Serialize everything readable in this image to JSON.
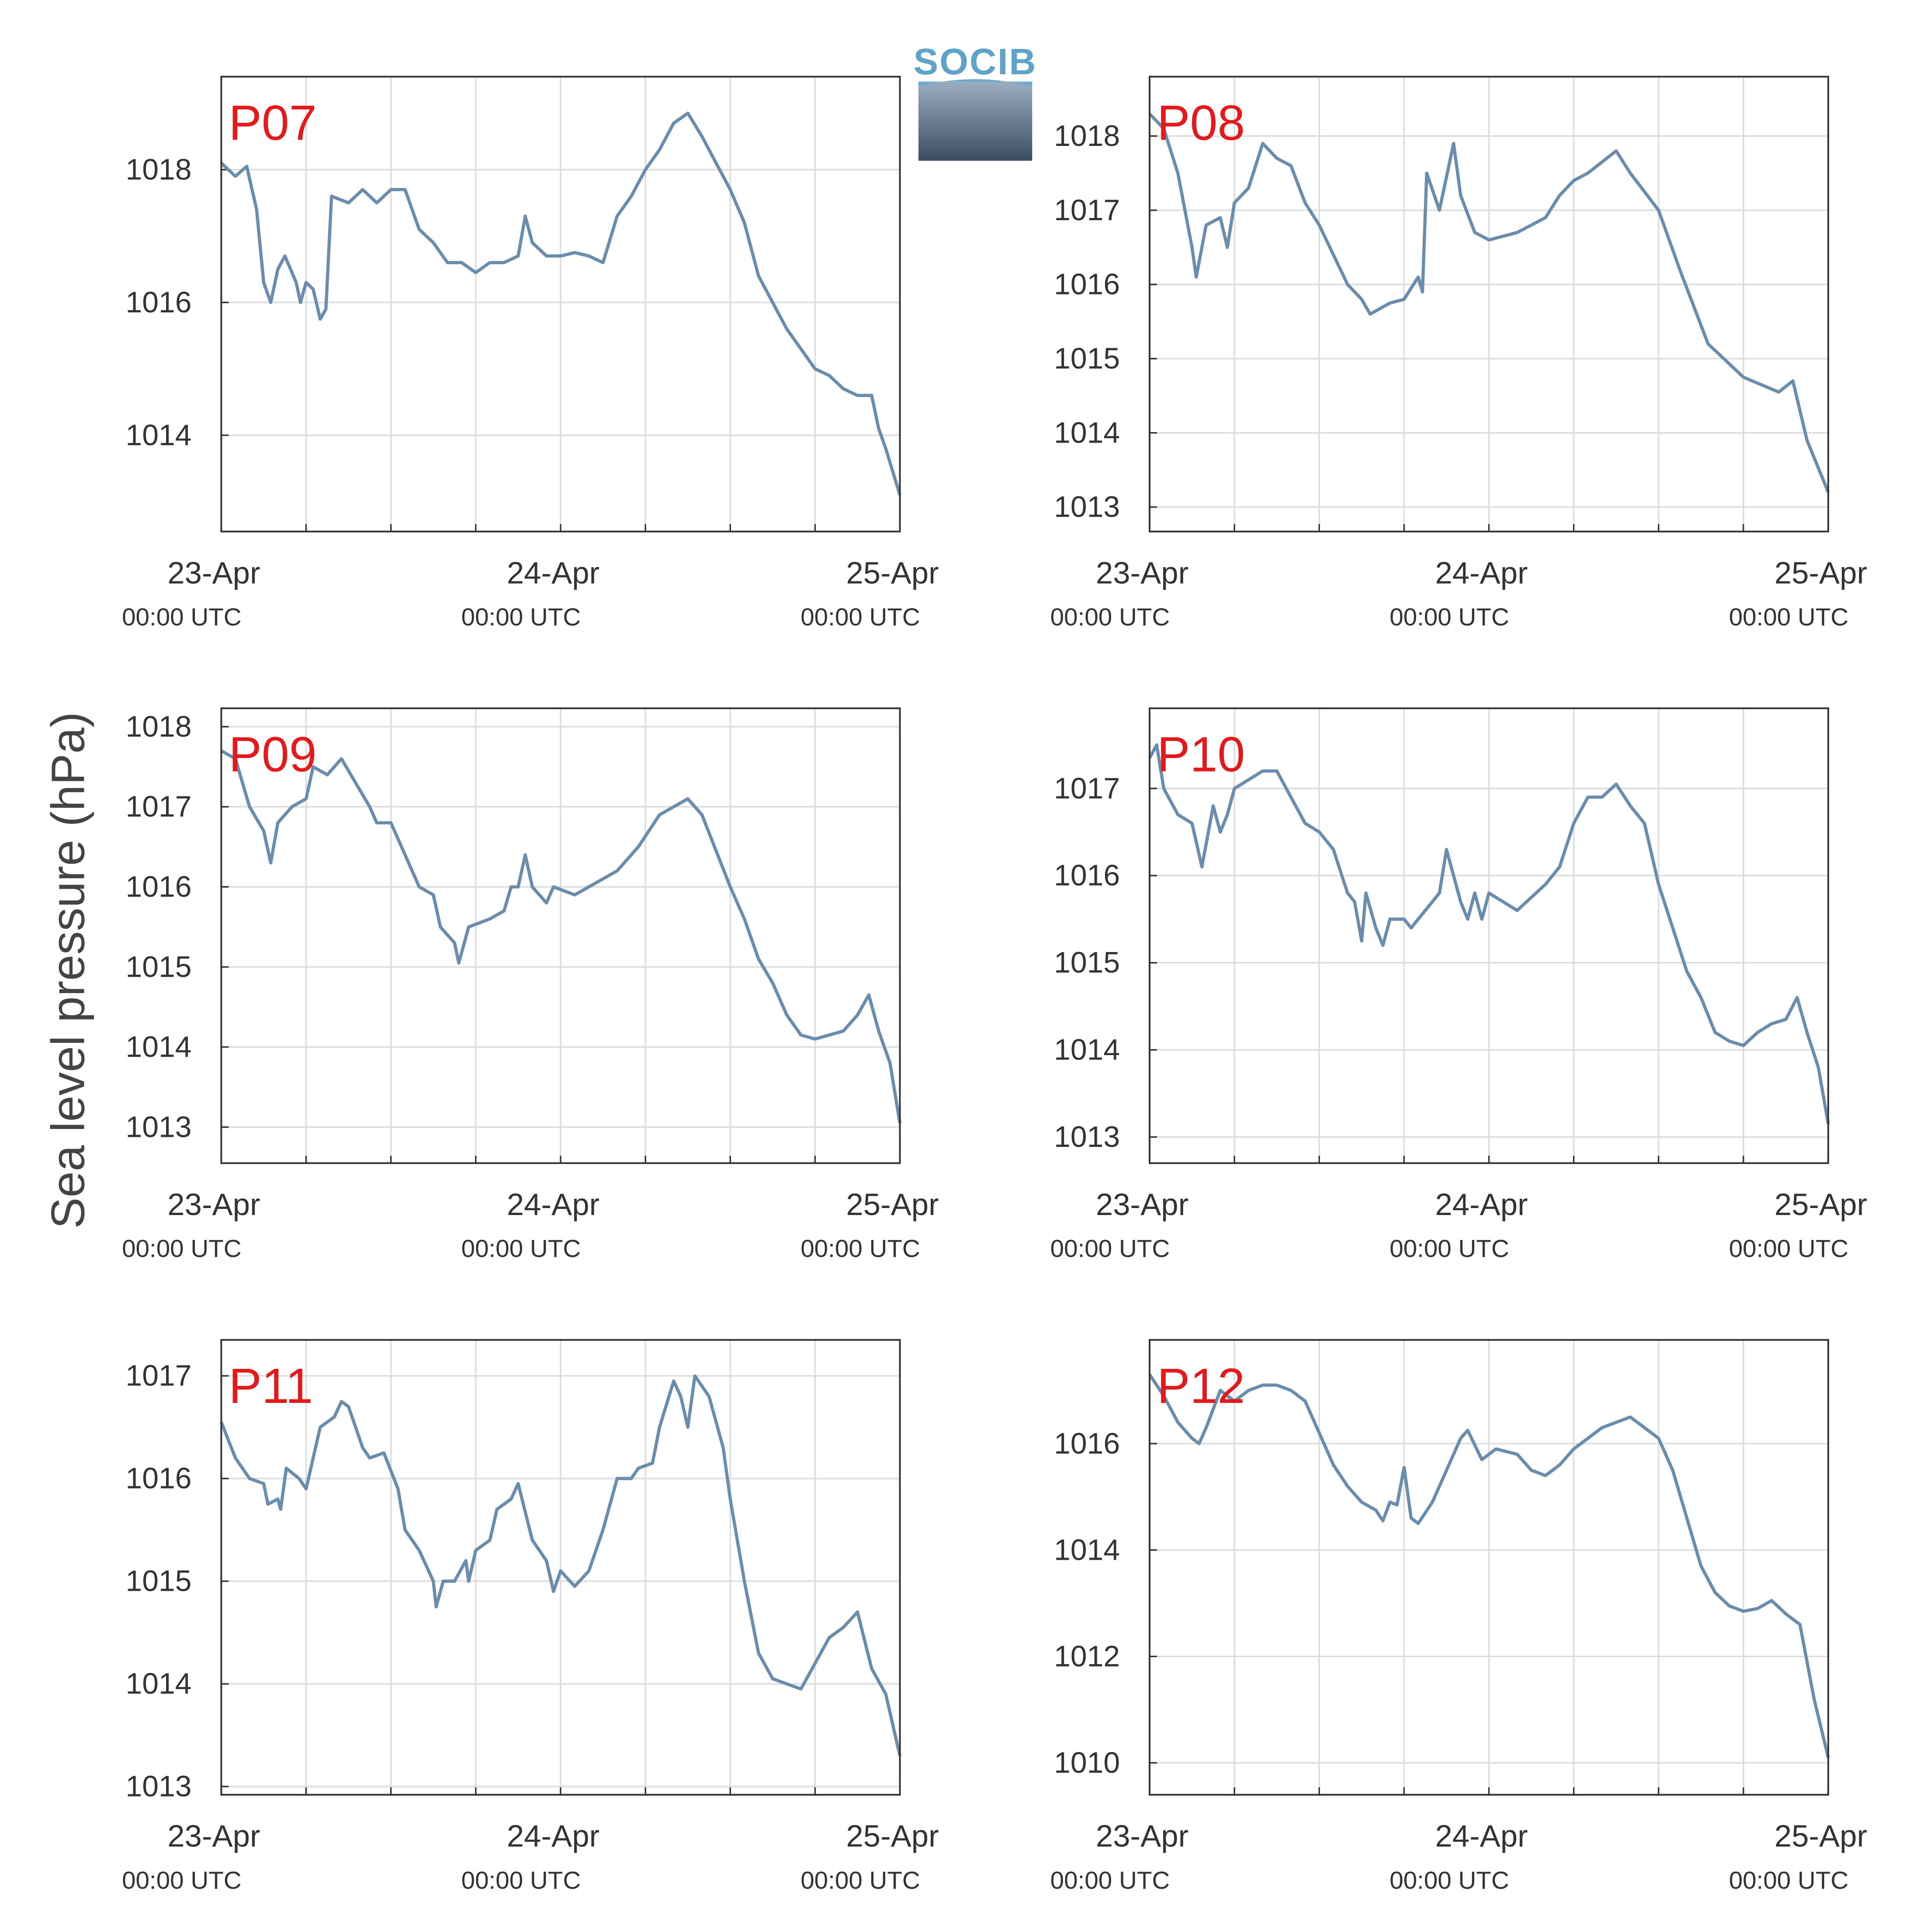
{
  "ylabel": "Sea level pressure (hPa)",
  "logo": "SOCIB",
  "chart_data": [
    {
      "type": "line",
      "title": "P07",
      "color": "#6a8cad",
      "grid": true,
      "xlim": [
        0,
        48
      ],
      "xticks": [
        {
          "value": 0,
          "label": "23-Apr",
          "sublabel": "00:00 UTC"
        },
        {
          "value": 24,
          "label": "24-Apr",
          "sublabel": "00:00 UTC"
        },
        {
          "value": 48,
          "label": "25-Apr",
          "sublabel": "00:00 UTC"
        }
      ],
      "xminor": [
        6,
        12,
        18,
        30,
        36,
        42
      ],
      "ylim": [
        1012.55,
        1019.4
      ],
      "yticks": [
        1014,
        1016,
        1018
      ],
      "x": [
        0,
        1,
        1.8,
        2.5,
        3,
        3.5,
        4,
        4.5,
        5.3,
        5.6,
        6,
        6.5,
        7,
        7.4,
        7.8,
        9,
        10,
        11,
        12,
        13,
        14,
        15,
        16,
        17,
        18,
        19,
        20,
        21,
        21.5,
        22,
        23,
        24,
        25,
        26,
        27,
        28,
        29,
        30,
        31,
        32,
        33,
        34,
        35,
        36,
        37,
        38,
        39,
        40,
        41,
        42,
        43,
        44,
        45,
        46,
        46.5,
        47,
        48
      ],
      "values": [
        1018.1,
        1017.9,
        1018.05,
        1017.4,
        1016.3,
        1016.0,
        1016.5,
        1016.7,
        1016.3,
        1016.0,
        1016.3,
        1016.2,
        1015.75,
        1015.9,
        1017.6,
        1017.5,
        1017.7,
        1017.5,
        1017.7,
        1017.7,
        1017.1,
        1016.9,
        1016.6,
        1016.6,
        1016.45,
        1016.6,
        1016.6,
        1016.7,
        1017.3,
        1016.9,
        1016.7,
        1016.7,
        1016.75,
        1016.7,
        1016.6,
        1017.3,
        1017.6,
        1018.0,
        1018.3,
        1018.7,
        1018.85,
        1018.5,
        1018.1,
        1017.7,
        1017.2,
        1016.4,
        1016.0,
        1015.6,
        1015.3,
        1015.0,
        1014.9,
        1014.7,
        1014.6,
        1014.6,
        1014.1,
        1013.8,
        1013.1
      ]
    },
    {
      "type": "line",
      "title": "P08",
      "color": "#6a8cad",
      "grid": true,
      "xlim": [
        0,
        48
      ],
      "xticks": [
        {
          "value": 0,
          "label": "23-Apr",
          "sublabel": "00:00 UTC"
        },
        {
          "value": 24,
          "label": "24-Apr",
          "sublabel": "00:00 UTC"
        },
        {
          "value": 48,
          "label": "25-Apr",
          "sublabel": "00:00 UTC"
        }
      ],
      "xminor": [
        6,
        12,
        18,
        30,
        36,
        42
      ],
      "ylim": [
        1012.67,
        1018.8
      ],
      "yticks": [
        1013,
        1014,
        1015,
        1016,
        1017,
        1018
      ],
      "x": [
        0,
        1,
        2,
        3,
        3.3,
        4,
        5,
        5.5,
        6,
        7,
        8,
        9,
        10,
        11,
        12,
        13,
        14,
        15,
        15.6,
        17,
        18,
        19,
        19.3,
        19.6,
        20.5,
        21.5,
        22,
        23,
        24,
        26,
        28,
        29,
        30,
        31,
        33,
        34,
        36,
        37.5,
        39.5,
        42,
        44.5,
        45.5,
        46.5,
        48
      ],
      "values": [
        1018.3,
        1018.1,
        1017.5,
        1016.5,
        1016.1,
        1016.8,
        1016.9,
        1016.5,
        1017.1,
        1017.3,
        1017.9,
        1017.7,
        1017.6,
        1017.1,
        1016.8,
        1016.4,
        1016.0,
        1015.8,
        1015.6,
        1015.75,
        1015.8,
        1016.1,
        1015.9,
        1017.5,
        1017.0,
        1017.9,
        1017.2,
        1016.7,
        1016.6,
        1016.7,
        1016.9,
        1017.2,
        1017.4,
        1017.5,
        1017.8,
        1017.5,
        1017.0,
        1016.2,
        1015.2,
        1014.75,
        1014.55,
        1014.7,
        1013.9,
        1013.2
      ]
    },
    {
      "type": "line",
      "title": "P09",
      "color": "#6a8cad",
      "grid": true,
      "xlim": [
        0,
        48
      ],
      "xticks": [
        {
          "value": 0,
          "label": "23-Apr",
          "sublabel": "00:00 UTC"
        },
        {
          "value": 24,
          "label": "24-Apr",
          "sublabel": "00:00 UTC"
        },
        {
          "value": 48,
          "label": "25-Apr",
          "sublabel": "00:00 UTC"
        }
      ],
      "xminor": [
        6,
        12,
        18,
        30,
        36,
        42
      ],
      "ylim": [
        1012.55,
        1018.23
      ],
      "yticks": [
        1013,
        1014,
        1015,
        1016,
        1017,
        1018
      ],
      "x": [
        0,
        1,
        2,
        3,
        3.5,
        4,
        5,
        6,
        6.5,
        7.5,
        8.5,
        9.5,
        10.5,
        11,
        12,
        13,
        14,
        15,
        15.5,
        16.5,
        16.8,
        17.5,
        19,
        20,
        20.5,
        21,
        21.5,
        22,
        23,
        23.5,
        25,
        26,
        28,
        29.5,
        31,
        33,
        34,
        36,
        37,
        38,
        39,
        40,
        41,
        42,
        44,
        45,
        45.8,
        46.5,
        47.3,
        48
      ],
      "values": [
        1017.7,
        1017.6,
        1017.0,
        1016.7,
        1016.3,
        1016.8,
        1017.0,
        1017.1,
        1017.5,
        1017.4,
        1017.6,
        1017.3,
        1017.0,
        1016.8,
        1016.8,
        1016.4,
        1016.0,
        1015.9,
        1015.5,
        1015.3,
        1015.05,
        1015.5,
        1015.6,
        1015.7,
        1016.0,
        1016.0,
        1016.4,
        1016.0,
        1015.8,
        1016.0,
        1015.9,
        1016.0,
        1016.2,
        1016.5,
        1016.9,
        1017.1,
        1016.9,
        1016.0,
        1015.6,
        1015.1,
        1014.8,
        1014.4,
        1014.15,
        1014.1,
        1014.2,
        1014.4,
        1014.65,
        1014.2,
        1013.8,
        1013.05
      ]
    },
    {
      "type": "line",
      "title": "P10",
      "color": "#6a8cad",
      "grid": true,
      "xlim": [
        0,
        48
      ],
      "xticks": [
        {
          "value": 0,
          "label": "23-Apr",
          "sublabel": "00:00 UTC"
        },
        {
          "value": 24,
          "label": "24-Apr",
          "sublabel": "00:00 UTC"
        },
        {
          "value": 48,
          "label": "25-Apr",
          "sublabel": "00:00 UTC"
        }
      ],
      "xminor": [
        6,
        12,
        18,
        30,
        36,
        42
      ],
      "ylim": [
        1012.7,
        1017.92
      ],
      "yticks": [
        1013,
        1014,
        1015,
        1016,
        1017
      ],
      "x": [
        0,
        0.5,
        1,
        2,
        3,
        3.7,
        4.5,
        5,
        5.5,
        6,
        7,
        8,
        9,
        10,
        11,
        12,
        13,
        14,
        14.5,
        15,
        15.3,
        16,
        16.5,
        17,
        18,
        18.5,
        19.5,
        20.5,
        21,
        22,
        22.5,
        23,
        23.5,
        24,
        26,
        27,
        28,
        29,
        30,
        31,
        32,
        33,
        34,
        35,
        36,
        37,
        38,
        39,
        40,
        41,
        42,
        43,
        44,
        45,
        45.8,
        46.5,
        47.3,
        48
      ],
      "values": [
        1017.35,
        1017.5,
        1017.0,
        1016.7,
        1016.6,
        1016.1,
        1016.8,
        1016.5,
        1016.7,
        1017.0,
        1017.1,
        1017.2,
        1017.2,
        1016.9,
        1016.6,
        1016.5,
        1016.3,
        1015.8,
        1015.7,
        1015.25,
        1015.8,
        1015.4,
        1015.2,
        1015.5,
        1015.5,
        1015.4,
        1015.6,
        1015.8,
        1016.3,
        1015.7,
        1015.5,
        1015.8,
        1015.5,
        1015.8,
        1015.6,
        1015.75,
        1015.9,
        1016.1,
        1016.6,
        1016.9,
        1016.9,
        1017.05,
        1016.8,
        1016.6,
        1015.9,
        1015.4,
        1014.9,
        1014.6,
        1014.2,
        1014.1,
        1014.05,
        1014.2,
        1014.3,
        1014.35,
        1014.6,
        1014.2,
        1013.8,
        1013.15
      ]
    },
    {
      "type": "line",
      "title": "P11",
      "color": "#6a8cad",
      "grid": true,
      "xlim": [
        0,
        48
      ],
      "xticks": [
        {
          "value": 0,
          "label": "23-Apr",
          "sublabel": "00:00 UTC"
        },
        {
          "value": 24,
          "label": "24-Apr",
          "sublabel": "00:00 UTC"
        },
        {
          "value": 48,
          "label": "25-Apr",
          "sublabel": "00:00 UTC"
        }
      ],
      "xminor": [
        6,
        12,
        18,
        30,
        36,
        42
      ],
      "ylim": [
        1012.92,
        1017.35
      ],
      "yticks": [
        1013,
        1014,
        1015,
        1016,
        1017
      ],
      "x": [
        0,
        1,
        2,
        3,
        3.3,
        4,
        4.2,
        4.6,
        5.5,
        6,
        6.5,
        7,
        8,
        8.5,
        9,
        10,
        10.5,
        11.5,
        12.5,
        13,
        14,
        15,
        15.2,
        15.7,
        16.5,
        17.3,
        17.5,
        18,
        19,
        19.5,
        20.5,
        21,
        22,
        23,
        23.5,
        24,
        25,
        26,
        27,
        28,
        29,
        29.5,
        30.5,
        31,
        32,
        32.5,
        33,
        33.5,
        34.5,
        35.5,
        36,
        37,
        38,
        39,
        40,
        41,
        42,
        43,
        44,
        45,
        46,
        47,
        48
      ],
      "values": [
        1016.55,
        1016.2,
        1016.0,
        1015.95,
        1015.75,
        1015.8,
        1015.7,
        1016.1,
        1016.0,
        1015.9,
        1016.2,
        1016.5,
        1016.6,
        1016.75,
        1016.7,
        1016.3,
        1016.2,
        1016.25,
        1015.9,
        1015.5,
        1015.3,
        1015.0,
        1014.75,
        1015.0,
        1015.0,
        1015.2,
        1015.0,
        1015.3,
        1015.4,
        1015.7,
        1015.8,
        1015.95,
        1015.4,
        1015.2,
        1014.9,
        1015.1,
        1014.95,
        1015.1,
        1015.5,
        1016.0,
        1016.0,
        1016.1,
        1016.15,
        1016.5,
        1016.95,
        1016.8,
        1016.5,
        1017.0,
        1016.8,
        1016.3,
        1015.8,
        1015.0,
        1014.3,
        1014.05,
        1014.0,
        1013.95,
        1014.2,
        1014.45,
        1014.55,
        1014.7,
        1014.15,
        1013.9,
        1013.3
      ]
    },
    {
      "type": "line",
      "title": "P12",
      "color": "#6a8cad",
      "grid": true,
      "xlim": [
        0,
        48
      ],
      "xticks": [
        {
          "value": 0,
          "label": "23-Apr",
          "sublabel": "00:00 UTC"
        },
        {
          "value": 24,
          "label": "24-Apr",
          "sublabel": "00:00 UTC"
        },
        {
          "value": 48,
          "label": "25-Apr",
          "sublabel": "00:00 UTC"
        }
      ],
      "xminor": [
        6,
        12,
        18,
        30,
        36,
        42
      ],
      "ylim": [
        1009.4,
        1017.95
      ],
      "yticks": [
        1010,
        1012,
        1014,
        1016
      ],
      "x": [
        0,
        1,
        2,
        3,
        3.5,
        4,
        5,
        6,
        7,
        8,
        9,
        10,
        11,
        12,
        13,
        14,
        15,
        16,
        16.5,
        17,
        17.5,
        18,
        18.5,
        19,
        20,
        21,
        22,
        22.5,
        23.5,
        24.5,
        26,
        27,
        28,
        29,
        30,
        31,
        32,
        33,
        34,
        35,
        36,
        37,
        38,
        39,
        40,
        41,
        42,
        43,
        44,
        45,
        46,
        47,
        48
      ],
      "values": [
        1017.3,
        1016.9,
        1016.4,
        1016.1,
        1016.0,
        1016.3,
        1017.0,
        1016.8,
        1017.0,
        1017.1,
        1017.1,
        1017.0,
        1016.8,
        1016.2,
        1015.6,
        1015.2,
        1014.9,
        1014.75,
        1014.55,
        1014.9,
        1014.85,
        1015.55,
        1014.6,
        1014.5,
        1014.9,
        1015.5,
        1016.1,
        1016.25,
        1015.7,
        1015.9,
        1015.8,
        1015.5,
        1015.4,
        1015.6,
        1015.9,
        1016.1,
        1016.3,
        1016.4,
        1016.5,
        1016.3,
        1016.1,
        1015.5,
        1014.6,
        1013.7,
        1013.2,
        1012.95,
        1012.85,
        1012.9,
        1013.05,
        1012.8,
        1012.6,
        1011.2,
        1010.1
      ]
    }
  ]
}
